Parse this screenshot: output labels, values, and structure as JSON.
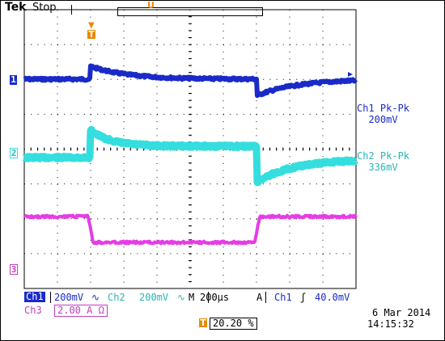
{
  "header": {
    "brand": "Tek",
    "run_state": "Stop",
    "record_marker": "U"
  },
  "trigger_marker": "T",
  "channel_markers": {
    "ch1": "1",
    "ch2": "2",
    "ch3": "3"
  },
  "measurements": [
    {
      "name": "Ch1 Pk-Pk",
      "value": "200mV"
    },
    {
      "name": "Ch2 Pk-Pk",
      "value": "336mV"
    }
  ],
  "status_bar": {
    "ch1_tag": "Ch1",
    "ch1_scale": "200mV",
    "ch1_coupling": "∿",
    "ch2_tag": "Ch2",
    "ch2_scale": "200mV",
    "ch2_coupling": "∿",
    "timebase_mode": "M",
    "timebase": "200µs",
    "trigger_mode": "A",
    "trigger_source": "Ch1",
    "trigger_slope": "ʃ",
    "trigger_level": "40.0mV",
    "ch3_tag": "Ch3",
    "ch3_scale": "2.00 A Ω",
    "trigger_position": "20.20 %",
    "date": "6 Mar  2014",
    "time": "14:15:32"
  },
  "colors": {
    "ch1": "#1a2ac9",
    "ch2": "#35dede",
    "ch3": "#e63ce6",
    "grid": "#000000",
    "trigger": "#e58a00"
  }
}
